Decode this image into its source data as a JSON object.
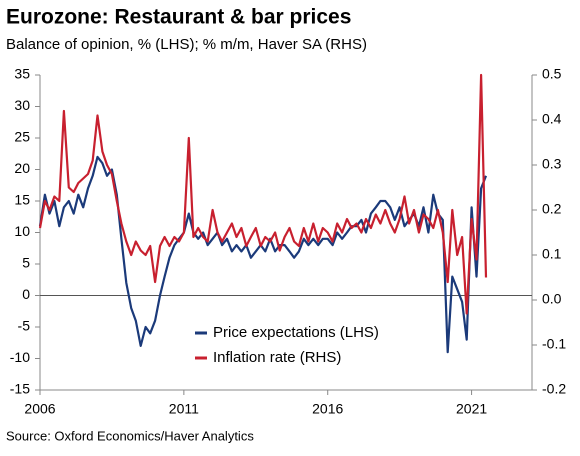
{
  "chart_data": {
    "type": "line",
    "title": "Eurozone: Restaurant & bar prices",
    "subtitle": "Balance of opinion, % (LHS); % m/m, Haver SA (RHS)",
    "source": "Source: Oxford Economics/Haver Analytics",
    "x": [
      2006,
      2006.17,
      2006.33,
      2006.5,
      2006.67,
      2006.83,
      2007,
      2007.17,
      2007.33,
      2007.5,
      2007.67,
      2007.83,
      2008,
      2008.17,
      2008.33,
      2008.5,
      2008.67,
      2008.83,
      2009,
      2009.17,
      2009.33,
      2009.5,
      2009.67,
      2009.83,
      2010,
      2010.17,
      2010.33,
      2010.5,
      2010.67,
      2010.83,
      2011,
      2011.17,
      2011.33,
      2011.5,
      2011.67,
      2011.83,
      2012,
      2012.17,
      2012.33,
      2012.5,
      2012.67,
      2012.83,
      2013,
      2013.17,
      2013.33,
      2013.5,
      2013.67,
      2013.83,
      2014,
      2014.17,
      2014.33,
      2014.5,
      2014.67,
      2014.83,
      2015,
      2015.17,
      2015.33,
      2015.5,
      2015.67,
      2015.83,
      2016,
      2016.17,
      2016.33,
      2016.5,
      2016.67,
      2016.83,
      2017,
      2017.17,
      2017.33,
      2017.5,
      2017.67,
      2017.83,
      2018,
      2018.17,
      2018.33,
      2018.5,
      2018.67,
      2018.83,
      2019,
      2019.17,
      2019.33,
      2019.5,
      2019.67,
      2019.83,
      2020,
      2020.17,
      2020.33,
      2020.5,
      2020.67,
      2020.83,
      2021,
      2021.17,
      2021.33,
      2021.5
    ],
    "series": [
      {
        "name": "Price expectations (LHS)",
        "color": "#1b3a7a",
        "axis": "y",
        "values": [
          11,
          16,
          13,
          15,
          11,
          14,
          15,
          13,
          16,
          14,
          17,
          19,
          22,
          21,
          19,
          20,
          16,
          9,
          2,
          -2,
          -4,
          -8,
          -5,
          -6,
          -4,
          0,
          3,
          6,
          8,
          9,
          10,
          13,
          10,
          9,
          10,
          8,
          9,
          10,
          8,
          9,
          7,
          8,
          7,
          8,
          6,
          7,
          8,
          7,
          9,
          7,
          8,
          8,
          7,
          6,
          7,
          9,
          8,
          9,
          8,
          9,
          9,
          8,
          10,
          9,
          10,
          11,
          11,
          12,
          10,
          13,
          14,
          15,
          15,
          14,
          12,
          14,
          11,
          12,
          13,
          11,
          14,
          10,
          16,
          13,
          12,
          -9,
          3,
          1,
          -1,
          -7,
          14,
          3,
          17,
          19
        ]
      },
      {
        "name": "Inflation rate (RHS)",
        "color": "#c8202f",
        "axis": "y2",
        "values": [
          0.16,
          0.22,
          0.2,
          0.23,
          0.22,
          0.42,
          0.25,
          0.24,
          0.26,
          0.27,
          0.28,
          0.31,
          0.41,
          0.33,
          0.3,
          0.28,
          0.22,
          0.17,
          0.13,
          0.1,
          0.13,
          0.11,
          0.1,
          0.12,
          0.04,
          0.12,
          0.14,
          0.12,
          0.14,
          0.13,
          0.15,
          0.36,
          0.14,
          0.16,
          0.14,
          0.13,
          0.2,
          0.15,
          0.13,
          0.15,
          0.17,
          0.14,
          0.16,
          0.12,
          0.14,
          0.16,
          0.12,
          0.14,
          0.13,
          0.15,
          0.11,
          0.14,
          0.16,
          0.13,
          0.12,
          0.16,
          0.13,
          0.17,
          0.13,
          0.16,
          0.15,
          0.13,
          0.17,
          0.15,
          0.18,
          0.16,
          0.17,
          0.15,
          0.18,
          0.16,
          0.19,
          0.17,
          0.2,
          0.17,
          0.15,
          0.18,
          0.23,
          0.17,
          0.2,
          0.15,
          0.19,
          0.18,
          0.16,
          0.2,
          0.15,
          0.04,
          0.2,
          0.1,
          0.14,
          -0.03,
          0.18,
          0.09,
          0.5,
          0.05
        ]
      }
    ],
    "xlim": [
      2006,
      2023.1
    ],
    "xticks": [
      2006,
      2011,
      2016,
      2021
    ],
    "ylim": [
      -15,
      35
    ],
    "yticks": [
      -15,
      -10,
      -5,
      0,
      5,
      10,
      15,
      20,
      25,
      30,
      35
    ],
    "y2lim": [
      -0.2,
      0.5
    ],
    "y2ticks": [
      {
        "value": -0.2,
        "label": "-0.2"
      },
      {
        "value": -0.1,
        "label": "-0.1"
      },
      {
        "value": 0,
        "label": "0.0"
      },
      {
        "value": 0.1,
        "label": "0.1"
      },
      {
        "value": 0.2,
        "label": "0.2"
      },
      {
        "value": 0.3,
        "label": "0.3"
      },
      {
        "value": 0.4,
        "label": "0.4"
      },
      {
        "value": 0.5,
        "label": "0.5"
      }
    ],
    "legend": "center"
  }
}
